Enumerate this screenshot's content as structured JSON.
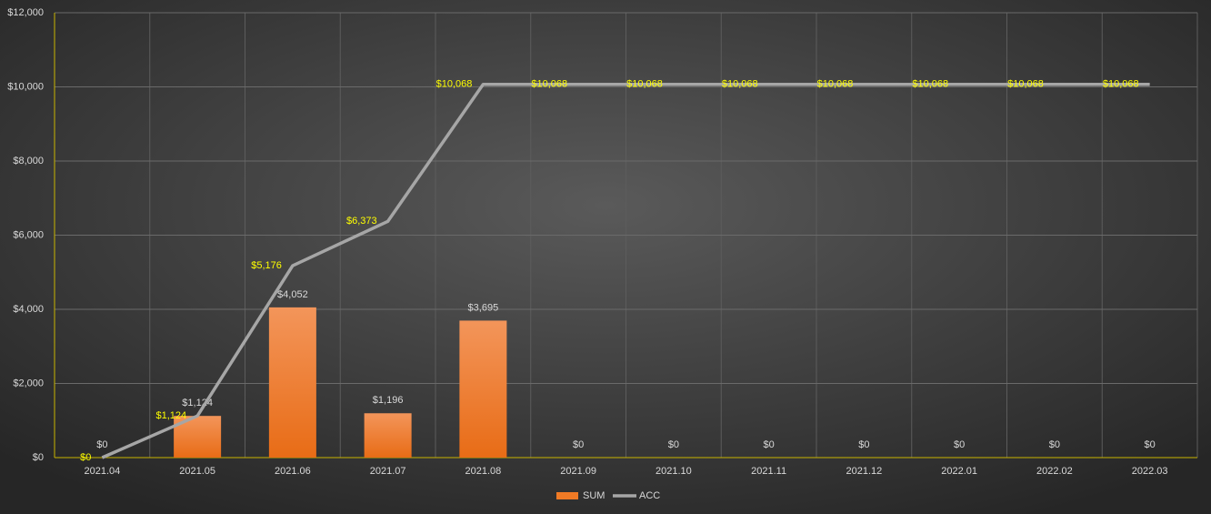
{
  "chart_data": {
    "type": "combo",
    "categories": [
      "2021.04",
      "2021.05",
      "2021.06",
      "2021.07",
      "2021.08",
      "2021.09",
      "2021.10",
      "2021.11",
      "2021.12",
      "2022.01",
      "2022.02",
      "2022.03"
    ],
    "series": [
      {
        "name": "SUM",
        "type": "bar",
        "color": "#f07a25",
        "label_color": "#d9d9d9",
        "values": [
          0,
          1124,
          4052,
          1196,
          3695,
          0,
          0,
          0,
          0,
          0,
          0,
          0
        ],
        "value_labels": [
          "$0",
          "$1,124",
          "$4,052",
          "$1,196",
          "$3,695",
          "$0",
          "$0",
          "$0",
          "$0",
          "$0",
          "$0",
          "$0"
        ]
      },
      {
        "name": "ACC",
        "type": "line",
        "color": "#a6a6a6",
        "label_color": "#ffff00",
        "values": [
          0,
          1124,
          5176,
          6373,
          10068,
          10068,
          10068,
          10068,
          10068,
          10068,
          10068,
          10068
        ],
        "value_labels": [
          "$0",
          "$1,124",
          "$5,176",
          "$6,373",
          "$10,068",
          "$10,068",
          "$10,068",
          "$10,068",
          "$10,068",
          "$10,068",
          "$10,068",
          "$10,068"
        ]
      }
    ],
    "ylim": [
      0,
      12000
    ],
    "yticks": [
      {
        "value": 0,
        "label": "$0"
      },
      {
        "value": 2000,
        "label": "$2,000"
      },
      {
        "value": 4000,
        "label": "$4,000"
      },
      {
        "value": 6000,
        "label": "$6,000"
      },
      {
        "value": 8000,
        "label": "$8,000"
      },
      {
        "value": 10000,
        "label": "$10,000"
      },
      {
        "value": 12000,
        "label": "$12,000"
      }
    ],
    "grid": true,
    "legend": "bottom"
  }
}
